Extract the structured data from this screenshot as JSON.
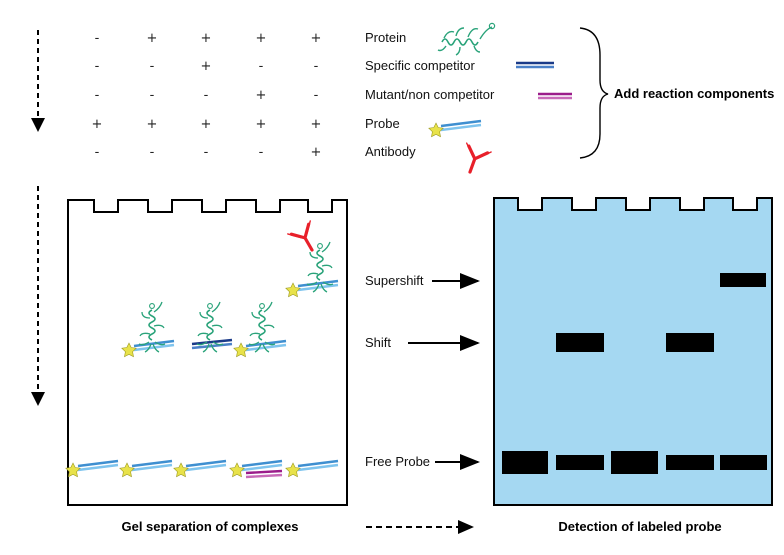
{
  "reaction_table": {
    "rows": [
      {
        "label": "Protein",
        "signs": [
          "-",
          "+",
          "+",
          "+",
          "+"
        ]
      },
      {
        "label": "Specific competitor",
        "signs": [
          "-",
          "-",
          "+",
          "-",
          "-"
        ]
      },
      {
        "label": "Mutant/non competitor",
        "signs": [
          "-",
          "-",
          "-",
          "+",
          "-"
        ]
      },
      {
        "label": "Probe",
        "signs": [
          "+",
          "+",
          "+",
          "+",
          "+"
        ]
      },
      {
        "label": "Antibody",
        "signs": [
          "-",
          "-",
          "-",
          "-",
          "+"
        ]
      }
    ],
    "brace_label": "Add reaction components"
  },
  "band_labels": {
    "supershift": "Supershift",
    "shift": "Shift",
    "free_probe": "Free Probe"
  },
  "captions": {
    "left": "Gel separation of complexes",
    "right": "Detection of labeled probe"
  },
  "colors": {
    "protein": "#2aa37a",
    "probe_strand_a": "#3f8fd0",
    "probe_strand_b": "#7fc4ee",
    "specific_competitor": "#1a3a88",
    "mutant_competitor": "#9b1c8a",
    "antibody": "#e8202a",
    "label_star": "#e8e24a",
    "gel_detection_fill": "#a5d8f2",
    "band": "#000000"
  }
}
